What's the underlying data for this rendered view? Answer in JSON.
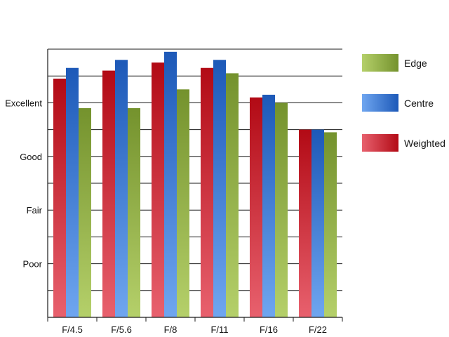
{
  "chart_data": {
    "type": "bar",
    "title": "",
    "xlabel": "",
    "ylabel": "",
    "categories": [
      "F/4.5",
      "F/5.6",
      "F/8",
      "F/11",
      "F/16",
      "F/22"
    ],
    "y_tick_labels": [
      "Poor",
      "Fair",
      "Good",
      "Excellent"
    ],
    "y_tick_values": [
      2,
      4,
      6,
      8
    ],
    "ylim": [
      0,
      10
    ],
    "grid": "horizontal",
    "legend_position": "right",
    "series": [
      {
        "name": "Weighted",
        "values": [
          8.9,
          9.2,
          9.5,
          9.3,
          8.2,
          7.0
        ],
        "color_light": "#e8616e",
        "color_dark": "#b20a15"
      },
      {
        "name": "Centre",
        "values": [
          9.3,
          9.6,
          9.9,
          9.6,
          8.3,
          7.0
        ],
        "color_light": "#6fa6f0",
        "color_dark": "#1d59b8"
      },
      {
        "name": "Edge",
        "values": [
          7.8,
          7.8,
          8.5,
          9.1,
          8.0,
          6.9
        ],
        "color_light": "#b5d06a",
        "color_dark": "#74922d"
      }
    ],
    "legend_order": [
      "Edge",
      "Centre",
      "Weighted"
    ]
  }
}
